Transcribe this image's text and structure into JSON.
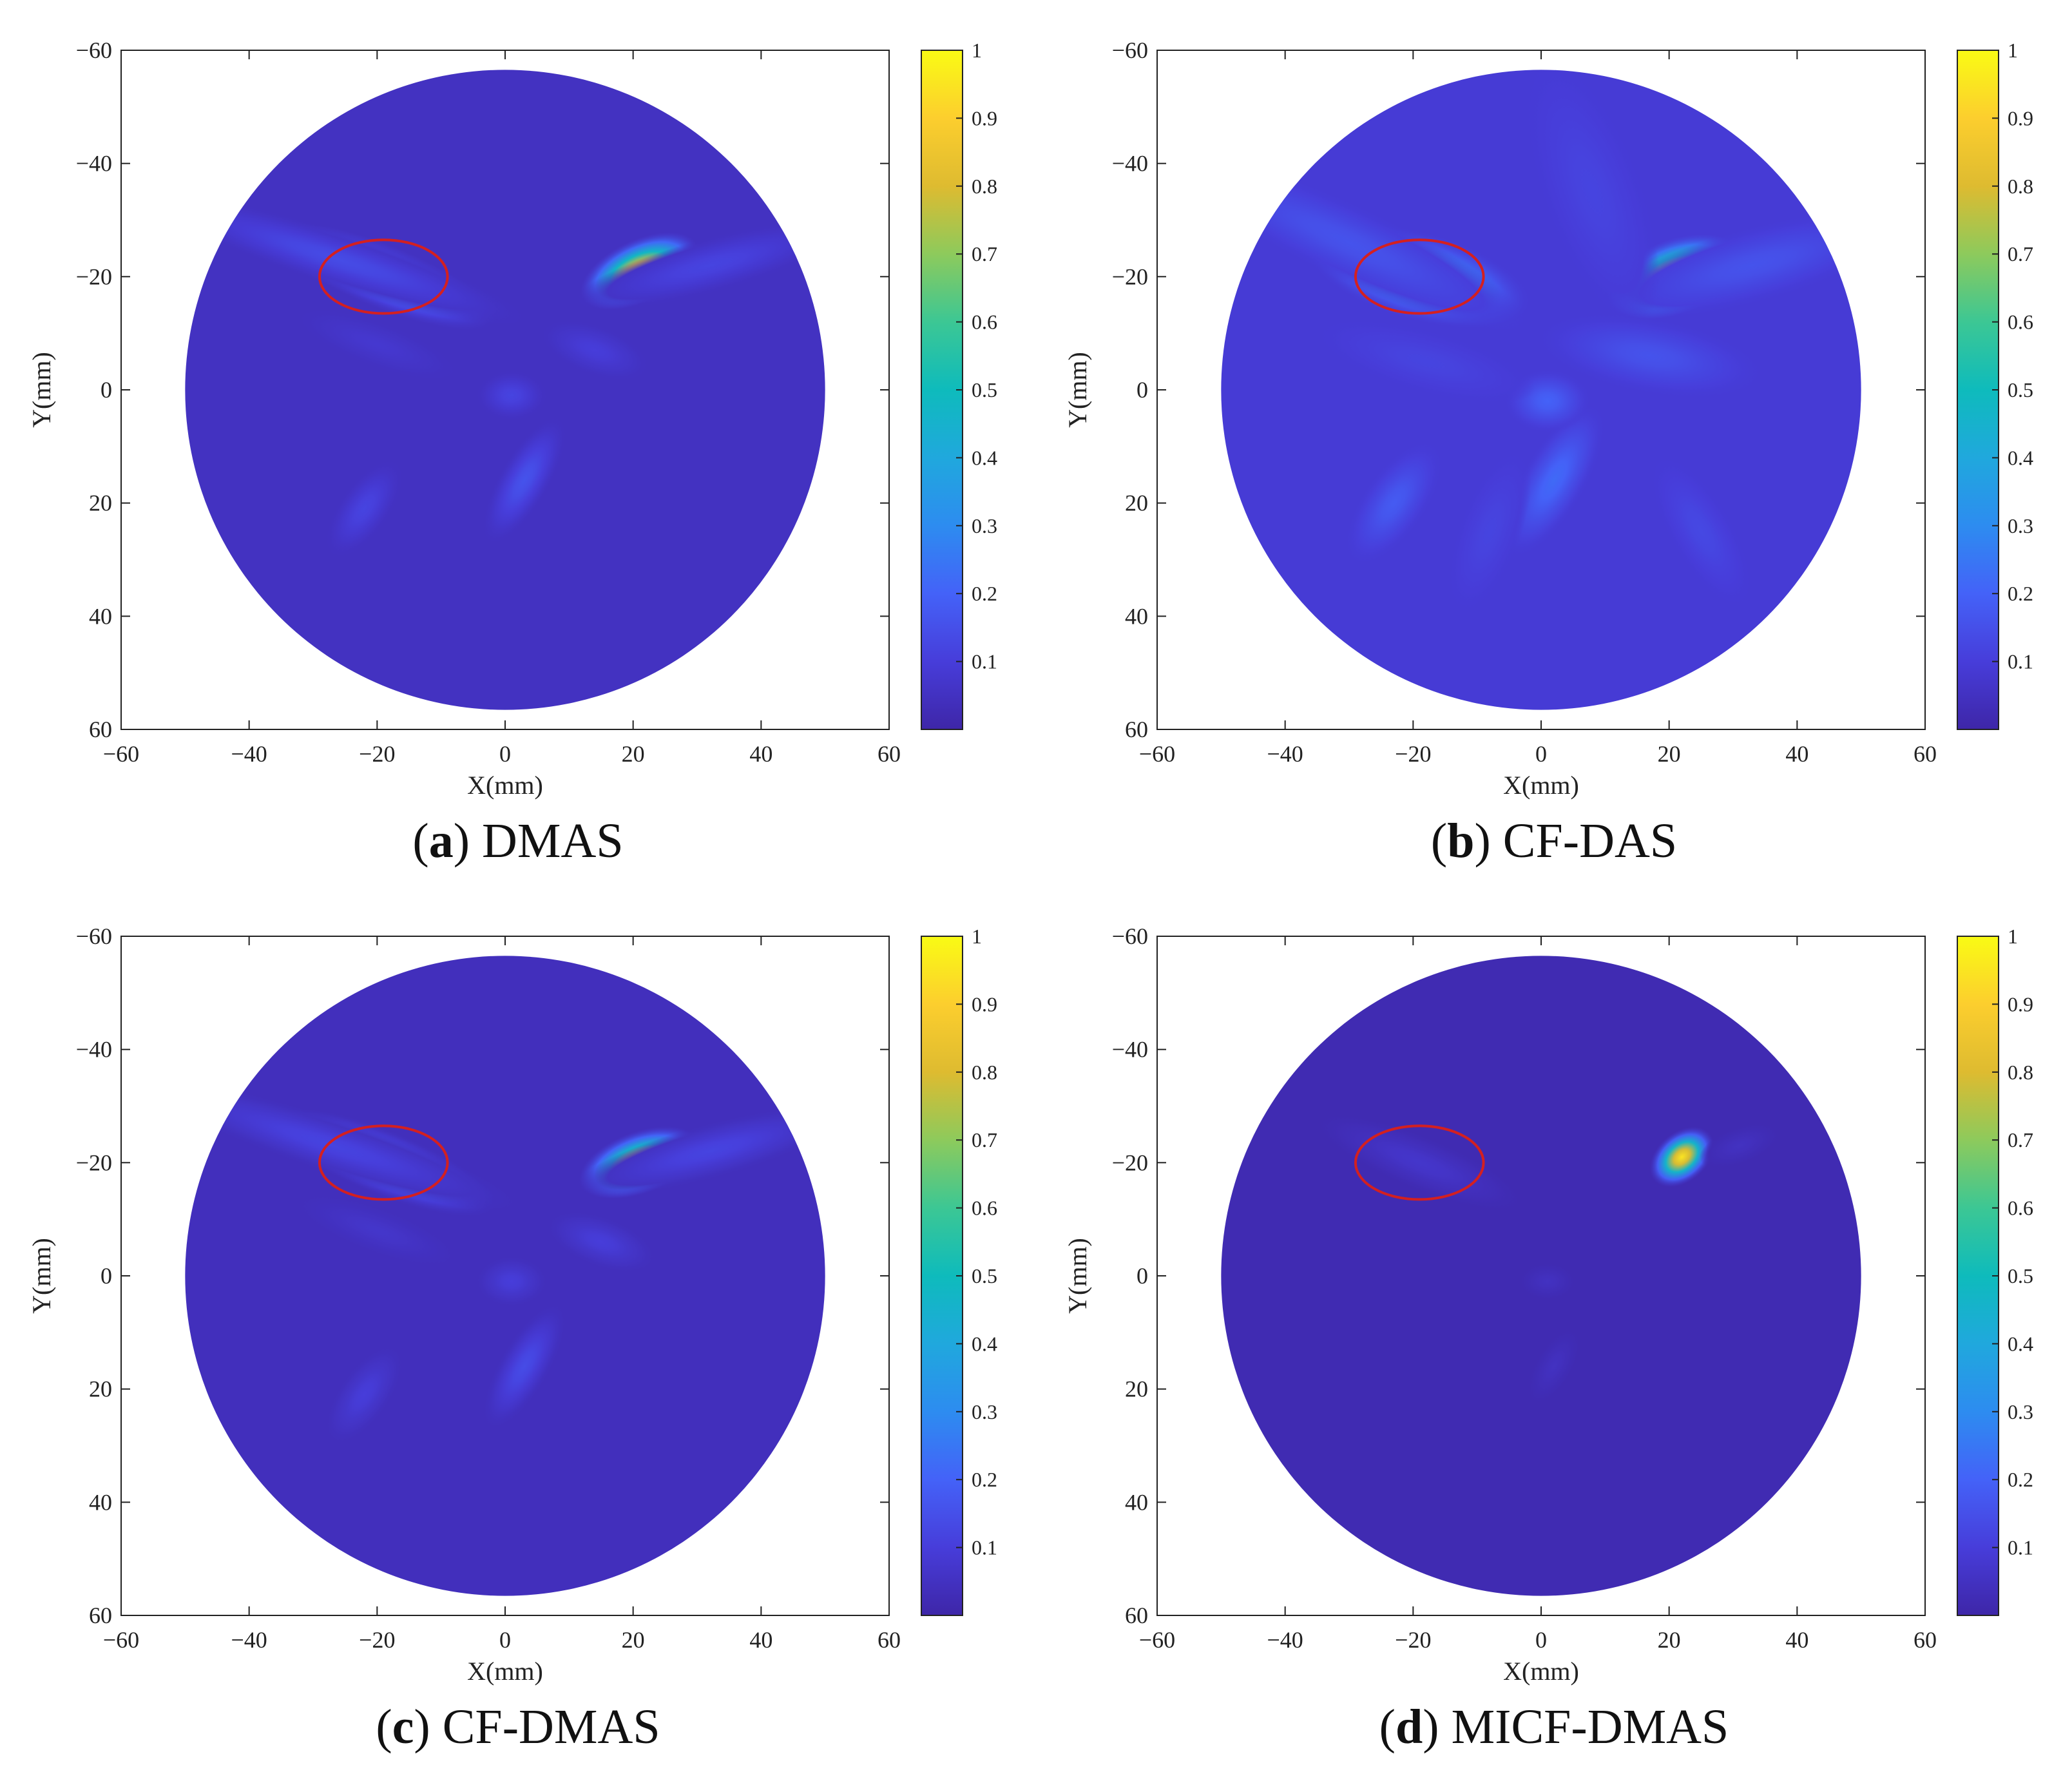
{
  "figure": {
    "panels": [
      {
        "letter": "a",
        "method": "DMAS"
      },
      {
        "letter": "b",
        "method": "CF-DAS"
      },
      {
        "letter": "c",
        "method": "CF-DMAS"
      },
      {
        "letter": "d",
        "method": "MICF-DMAS"
      }
    ]
  },
  "chart_data": [
    {
      "type": "heatmap",
      "caption": "(a) DMAS",
      "xlabel": "X(mm)",
      "ylabel": "Y(mm)",
      "xlim": [
        -60,
        60
      ],
      "ylim": [
        -60,
        60
      ],
      "y_reversed": true,
      "xticks": [
        -60,
        -40,
        -20,
        0,
        20,
        40,
        60
      ],
      "yticks": [
        -60,
        -40,
        -20,
        0,
        20,
        40,
        60
      ],
      "colorbar": {
        "min": 0,
        "max": 1,
        "ticks": [
          0.1,
          0.2,
          0.3,
          0.4,
          0.5,
          0.6,
          0.7,
          0.8,
          0.9,
          1
        ],
        "colormap": "parula"
      },
      "domain": {
        "shape": "circle",
        "center": [
          0,
          0
        ],
        "radius_mm": 50
      },
      "background_value": 0.05,
      "blobs": [
        {
          "x": 21,
          "y": -21,
          "sx": 4.5,
          "sy": 2.5,
          "angle": -25,
          "value": 0.95
        },
        {
          "x": -19,
          "y": -20,
          "sx": 8.5,
          "sy": 2.6,
          "angle": 22,
          "value": 0.35
        },
        {
          "x": -26,
          "y": -23,
          "sx": 14,
          "sy": 2.2,
          "angle": 18,
          "value": 0.14
        },
        {
          "x": 32,
          "y": -22,
          "sx": 10,
          "sy": 2.2,
          "angle": -15,
          "value": 0.12
        },
        {
          "x": 3,
          "y": 16,
          "sx": 5,
          "sy": 2,
          "angle": -60,
          "value": 0.16
        },
        {
          "x": -22,
          "y": 21,
          "sx": 4,
          "sy": 2,
          "angle": -55,
          "value": 0.12
        },
        {
          "x": 1,
          "y": 1,
          "sx": 2.5,
          "sy": 2,
          "angle": 0,
          "value": 0.12
        },
        {
          "x": 14,
          "y": -7,
          "sx": 4,
          "sy": 2,
          "angle": 20,
          "value": 0.1
        },
        {
          "x": -20,
          "y": -8,
          "sx": 6,
          "sy": 1.8,
          "angle": 20,
          "value": 0.08
        }
      ],
      "annotation": {
        "shape": "ellipse",
        "center": [
          -19,
          -20
        ],
        "rx": 10,
        "ry": 6.5,
        "color": "#d42020"
      }
    },
    {
      "type": "heatmap",
      "caption": "(b) CF-DAS",
      "xlabel": "X(mm)",
      "ylabel": "Y(mm)",
      "xlim": [
        -60,
        60
      ],
      "ylim": [
        -60,
        60
      ],
      "y_reversed": true,
      "xticks": [
        -60,
        -40,
        -20,
        0,
        20,
        40,
        60
      ],
      "yticks": [
        -60,
        -40,
        -20,
        0,
        20,
        40,
        60
      ],
      "colorbar": {
        "min": 0,
        "max": 1,
        "ticks": [
          0.1,
          0.2,
          0.3,
          0.4,
          0.5,
          0.6,
          0.7,
          0.8,
          0.9,
          1
        ],
        "colormap": "parula"
      },
      "domain": {
        "shape": "circle",
        "center": [
          0,
          0
        ],
        "radius_mm": 50
      },
      "background_value": 0.09,
      "blobs": [
        {
          "x": 21,
          "y": -20,
          "sx": 5,
          "sy": 3,
          "angle": -20,
          "value": 0.92
        },
        {
          "x": -19,
          "y": -20,
          "sx": 8,
          "sy": 3.5,
          "angle": 15,
          "value": 0.45
        },
        {
          "x": -30,
          "y": -26,
          "sx": 14,
          "sy": 3,
          "angle": 25,
          "value": 0.16
        },
        {
          "x": 33,
          "y": -22,
          "sx": 11,
          "sy": 3,
          "angle": -15,
          "value": 0.16
        },
        {
          "x": 2,
          "y": 16,
          "sx": 6,
          "sy": 2.5,
          "angle": -60,
          "value": 0.22
        },
        {
          "x": -23,
          "y": 20,
          "sx": 5,
          "sy": 2.5,
          "angle": -55,
          "value": 0.18
        },
        {
          "x": 1,
          "y": 2,
          "sx": 3,
          "sy": 2.5,
          "angle": 0,
          "value": 0.2
        },
        {
          "x": 17,
          "y": -6,
          "sx": 8,
          "sy": 3,
          "angle": 10,
          "value": 0.16
        },
        {
          "x": -18,
          "y": -5,
          "sx": 8,
          "sy": 2.5,
          "angle": 15,
          "value": 0.12
        },
        {
          "x": 25,
          "y": 25,
          "sx": 6,
          "sy": 2.5,
          "angle": 60,
          "value": 0.13
        },
        {
          "x": -8,
          "y": 25,
          "sx": 6,
          "sy": 2.5,
          "angle": -70,
          "value": 0.12
        },
        {
          "x": 8,
          "y": -35,
          "sx": 10,
          "sy": 4,
          "angle": 70,
          "value": 0.12
        }
      ],
      "annotation": {
        "shape": "ellipse",
        "center": [
          -19,
          -20
        ],
        "rx": 10,
        "ry": 6.5,
        "color": "#d42020"
      }
    },
    {
      "type": "heatmap",
      "caption": "(c) CF-DMAS",
      "xlabel": "X(mm)",
      "ylabel": "Y(mm)",
      "xlim": [
        -60,
        60
      ],
      "ylim": [
        -60,
        60
      ],
      "y_reversed": true,
      "xticks": [
        -60,
        -40,
        -20,
        0,
        20,
        40,
        60
      ],
      "yticks": [
        -60,
        -40,
        -20,
        0,
        20,
        40,
        60
      ],
      "colorbar": {
        "min": 0,
        "max": 1,
        "ticks": [
          0.1,
          0.2,
          0.3,
          0.4,
          0.5,
          0.6,
          0.7,
          0.8,
          0.9,
          1
        ],
        "colormap": "parula"
      },
      "domain": {
        "shape": "circle",
        "center": [
          0,
          0
        ],
        "radius_mm": 50
      },
      "background_value": 0.04,
      "blobs": [
        {
          "x": 21,
          "y": -20,
          "sx": 4.5,
          "sy": 2.5,
          "angle": -20,
          "value": 0.93
        },
        {
          "x": -19,
          "y": -20,
          "sx": 8.5,
          "sy": 2.6,
          "angle": 22,
          "value": 0.33
        },
        {
          "x": -27,
          "y": -23,
          "sx": 14,
          "sy": 2.2,
          "angle": 18,
          "value": 0.12
        },
        {
          "x": 32,
          "y": -22,
          "sx": 10,
          "sy": 2.2,
          "angle": -15,
          "value": 0.12
        },
        {
          "x": 3,
          "y": 16,
          "sx": 5,
          "sy": 2,
          "angle": -60,
          "value": 0.14
        },
        {
          "x": -22,
          "y": 21,
          "sx": 4,
          "sy": 2,
          "angle": -55,
          "value": 0.1
        },
        {
          "x": 1,
          "y": 1,
          "sx": 2.5,
          "sy": 2,
          "angle": 0,
          "value": 0.1
        },
        {
          "x": 15,
          "y": -6,
          "sx": 4,
          "sy": 2,
          "angle": 20,
          "value": 0.1
        },
        {
          "x": -20,
          "y": -8,
          "sx": 6,
          "sy": 1.8,
          "angle": 20,
          "value": 0.07
        }
      ],
      "annotation": {
        "shape": "ellipse",
        "center": [
          -19,
          -20
        ],
        "rx": 10,
        "ry": 6.5,
        "color": "#d42020"
      }
    },
    {
      "type": "heatmap",
      "caption": "(d) MICF-DMAS",
      "xlabel": "X(mm)",
      "ylabel": "Y(mm)",
      "xlim": [
        -60,
        60
      ],
      "ylim": [
        -60,
        60
      ],
      "y_reversed": true,
      "xticks": [
        -60,
        -40,
        -20,
        0,
        20,
        40,
        60
      ],
      "yticks": [
        -60,
        -40,
        -20,
        0,
        20,
        40,
        60
      ],
      "colorbar": {
        "min": 0,
        "max": 1,
        "ticks": [
          0.1,
          0.2,
          0.3,
          0.4,
          0.5,
          0.6,
          0.7,
          0.8,
          0.9,
          1
        ],
        "colormap": "parula"
      },
      "domain": {
        "shape": "circle",
        "center": [
          0,
          0
        ],
        "radius_mm": 50
      },
      "background_value": 0.02,
      "blobs": [
        {
          "x": 22,
          "y": -21,
          "sx": 2.6,
          "sy": 2,
          "angle": -40,
          "value": 0.95
        },
        {
          "x": -19,
          "y": -20,
          "sx": 8,
          "sy": 2.2,
          "angle": 22,
          "value": 0.07
        },
        {
          "x": 31,
          "y": -23,
          "sx": 3,
          "sy": 1.5,
          "angle": -20,
          "value": 0.05
        },
        {
          "x": 1,
          "y": 1,
          "sx": 2,
          "sy": 1.5,
          "angle": 0,
          "value": 0.05
        },
        {
          "x": 2,
          "y": 16,
          "sx": 3,
          "sy": 1.5,
          "angle": -60,
          "value": 0.05
        }
      ],
      "annotation": {
        "shape": "ellipse",
        "center": [
          -19,
          -20
        ],
        "rx": 10,
        "ry": 6.5,
        "color": "#d42020"
      }
    }
  ]
}
